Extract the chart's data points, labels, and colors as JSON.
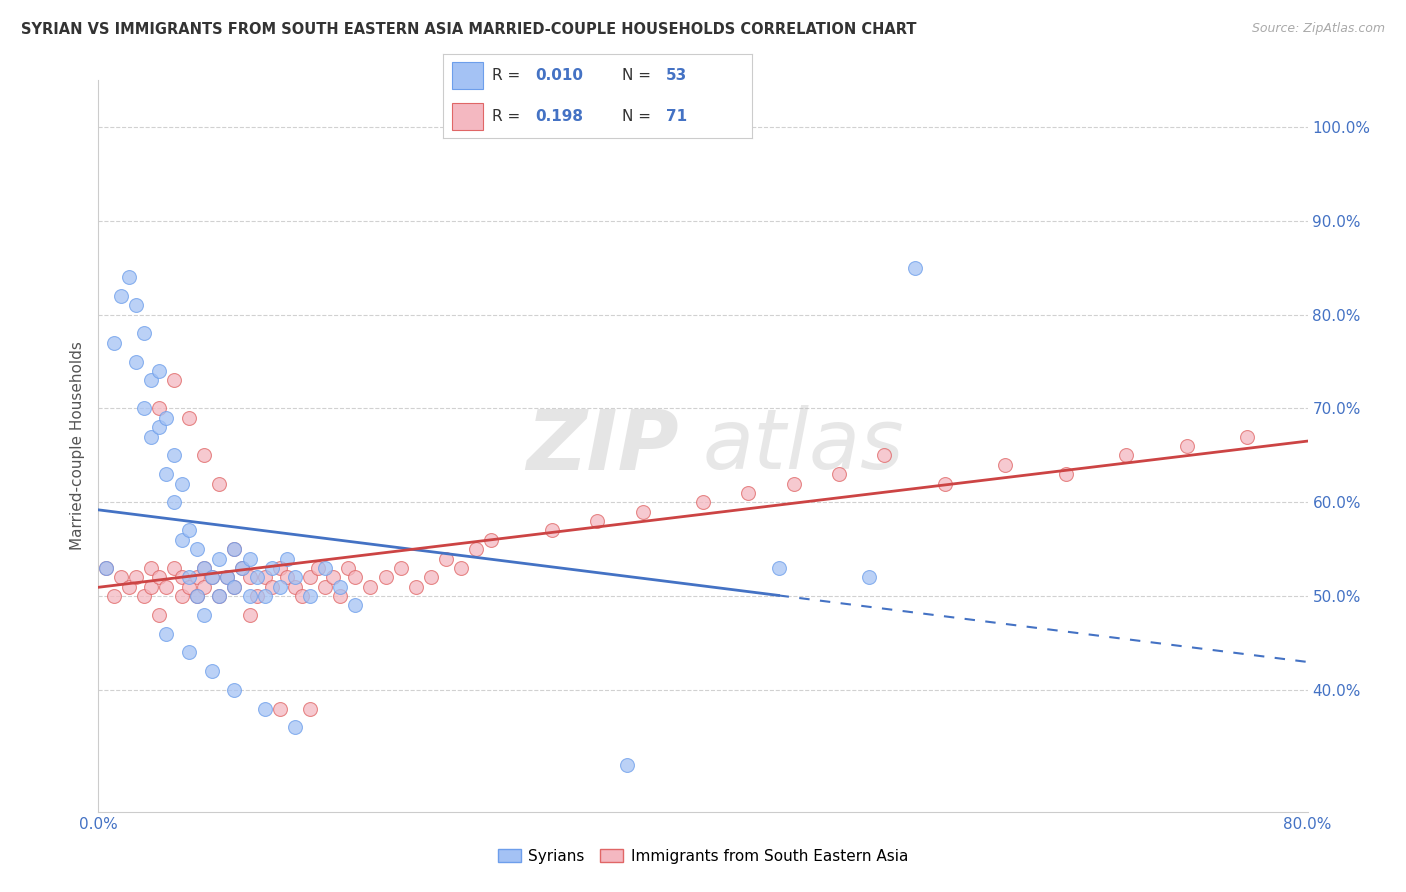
{
  "title": "SYRIAN VS IMMIGRANTS FROM SOUTH EASTERN ASIA MARRIED-COUPLE HOUSEHOLDS CORRELATION CHART",
  "source": "Source: ZipAtlas.com",
  "ylabel": "Married-couple Households",
  "legend_label1": "Syrians",
  "legend_label2": "Immigrants from South Eastern Asia",
  "legend_r1": "R = 0.010",
  "legend_n1": "N = 53",
  "legend_r2": "R = 0.198",
  "legend_n2": "N = 71",
  "color_blue": "#a4c2f4",
  "color_pink": "#f4b8c1",
  "color_blue_edge": "#6d9eeb",
  "color_pink_edge": "#e06666",
  "color_blue_line": "#4472c4",
  "color_pink_line": "#cc4444",
  "color_r_value": "#4472c4",
  "background_color": "#ffffff",
  "grid_color": "#cccccc",
  "watermark_zip": "ZIP",
  "watermark_atlas": "atlas",
  "xlim": [
    0.0,
    0.8
  ],
  "ylim": [
    0.27,
    1.05
  ],
  "ytick_vals": [
    0.4,
    0.5,
    0.6,
    0.7,
    0.8,
    0.9,
    1.0
  ],
  "ytick_labels": [
    "40.0%",
    "50.0%",
    "60.0%",
    "70.0%",
    "80.0%",
    "90.0%",
    "100.0%"
  ],
  "syrians_x": [
    0.005,
    0.01,
    0.015,
    0.02,
    0.025,
    0.025,
    0.03,
    0.03,
    0.035,
    0.035,
    0.04,
    0.04,
    0.045,
    0.045,
    0.05,
    0.05,
    0.055,
    0.055,
    0.06,
    0.06,
    0.065,
    0.065,
    0.07,
    0.07,
    0.075,
    0.08,
    0.08,
    0.085,
    0.09,
    0.09,
    0.095,
    0.1,
    0.1,
    0.105,
    0.11,
    0.115,
    0.12,
    0.125,
    0.13,
    0.14,
    0.15,
    0.16,
    0.17,
    0.045,
    0.06,
    0.075,
    0.09,
    0.11,
    0.13,
    0.45,
    0.51,
    0.54,
    0.35
  ],
  "syrians_y": [
    0.53,
    0.77,
    0.82,
    0.84,
    0.81,
    0.75,
    0.7,
    0.78,
    0.73,
    0.67,
    0.68,
    0.74,
    0.63,
    0.69,
    0.65,
    0.6,
    0.62,
    0.56,
    0.57,
    0.52,
    0.55,
    0.5,
    0.53,
    0.48,
    0.52,
    0.5,
    0.54,
    0.52,
    0.51,
    0.55,
    0.53,
    0.5,
    0.54,
    0.52,
    0.5,
    0.53,
    0.51,
    0.54,
    0.52,
    0.5,
    0.53,
    0.51,
    0.49,
    0.46,
    0.44,
    0.42,
    0.4,
    0.38,
    0.36,
    0.53,
    0.52,
    0.85,
    0.32
  ],
  "sea_x": [
    0.005,
    0.01,
    0.015,
    0.02,
    0.025,
    0.03,
    0.035,
    0.035,
    0.04,
    0.04,
    0.045,
    0.05,
    0.055,
    0.055,
    0.06,
    0.065,
    0.065,
    0.07,
    0.07,
    0.075,
    0.08,
    0.085,
    0.09,
    0.095,
    0.1,
    0.105,
    0.11,
    0.115,
    0.12,
    0.125,
    0.13,
    0.135,
    0.14,
    0.145,
    0.15,
    0.155,
    0.16,
    0.165,
    0.17,
    0.18,
    0.19,
    0.2,
    0.21,
    0.22,
    0.23,
    0.24,
    0.25,
    0.26,
    0.3,
    0.33,
    0.36,
    0.4,
    0.43,
    0.46,
    0.49,
    0.52,
    0.56,
    0.6,
    0.64,
    0.68,
    0.72,
    0.76,
    0.04,
    0.05,
    0.06,
    0.07,
    0.08,
    0.09,
    0.1,
    0.12,
    0.14
  ],
  "sea_y": [
    0.53,
    0.5,
    0.52,
    0.51,
    0.52,
    0.5,
    0.53,
    0.51,
    0.52,
    0.48,
    0.51,
    0.53,
    0.52,
    0.5,
    0.51,
    0.5,
    0.52,
    0.51,
    0.53,
    0.52,
    0.5,
    0.52,
    0.51,
    0.53,
    0.52,
    0.5,
    0.52,
    0.51,
    0.53,
    0.52,
    0.51,
    0.5,
    0.52,
    0.53,
    0.51,
    0.52,
    0.5,
    0.53,
    0.52,
    0.51,
    0.52,
    0.53,
    0.51,
    0.52,
    0.54,
    0.53,
    0.55,
    0.56,
    0.57,
    0.58,
    0.59,
    0.6,
    0.61,
    0.62,
    0.63,
    0.65,
    0.62,
    0.64,
    0.63,
    0.65,
    0.66,
    0.67,
    0.7,
    0.73,
    0.69,
    0.65,
    0.62,
    0.55,
    0.48,
    0.38,
    0.38
  ]
}
